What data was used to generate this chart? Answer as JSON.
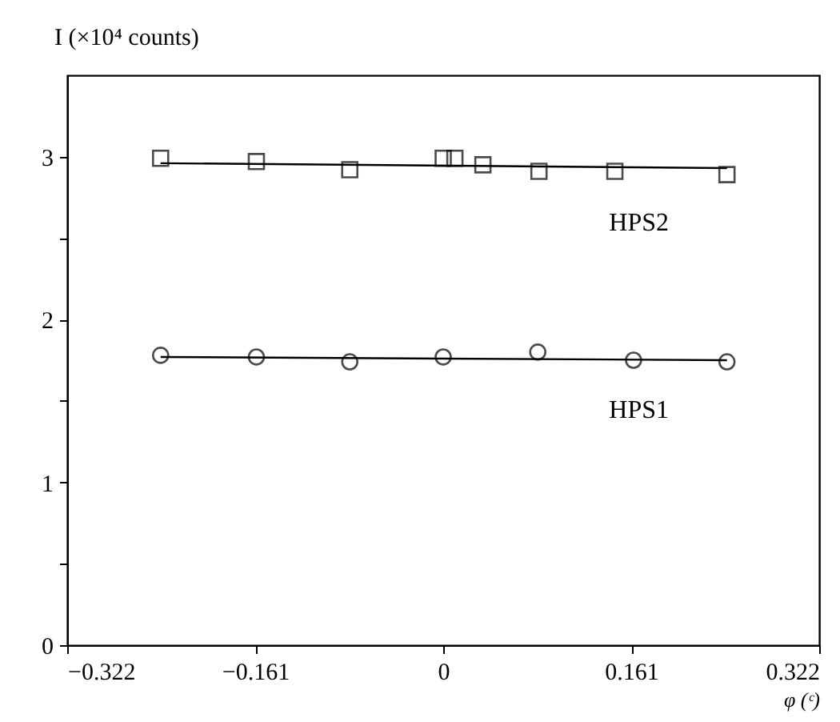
{
  "chart_data": {
    "type": "scatter",
    "ylabel": "I (×10⁴ counts)",
    "xlabel": "φ (ᶜ)",
    "xlim": [
      -0.322,
      0.322
    ],
    "xticks": [
      -0.322,
      -0.161,
      0,
      0.161,
      0.322
    ],
    "ylim": [
      0,
      3.5
    ],
    "yticks": [
      0,
      {
        "value": 0.5,
        "label": null
      },
      1,
      {
        "value": 1.5,
        "label": null
      },
      2,
      {
        "value": 2.5,
        "label": null
      },
      3
    ],
    "grid": false,
    "series": [
      {
        "name": "HPS2",
        "marker": "square",
        "color": "#000000",
        "x": [
          -0.242,
          -0.16,
          -0.08,
          0.0,
          0.01,
          0.034,
          0.082,
          0.147,
          0.243
        ],
        "values": [
          2.99,
          2.97,
          2.92,
          2.99,
          2.99,
          2.95,
          2.91,
          2.91,
          2.89
        ]
      },
      {
        "type": "line",
        "color": "#000000",
        "marker": "none",
        "line_style": "solid",
        "x": [
          -0.242,
          0.243
        ],
        "values": [
          2.96,
          2.93
        ]
      },
      {
        "name": "HPS1",
        "marker": "circle",
        "color": "#000000",
        "x": [
          -0.242,
          -0.16,
          -0.08,
          0.0,
          0.081,
          0.163,
          0.243
        ],
        "values": [
          1.78,
          1.77,
          1.74,
          1.77,
          1.8,
          1.75,
          1.74
        ]
      },
      {
        "type": "line",
        "color": "#000000",
        "marker": "none",
        "line_style": "solid",
        "x": [
          -0.242,
          0.243
        ],
        "values": [
          1.77,
          1.75
        ]
      }
    ]
  }
}
